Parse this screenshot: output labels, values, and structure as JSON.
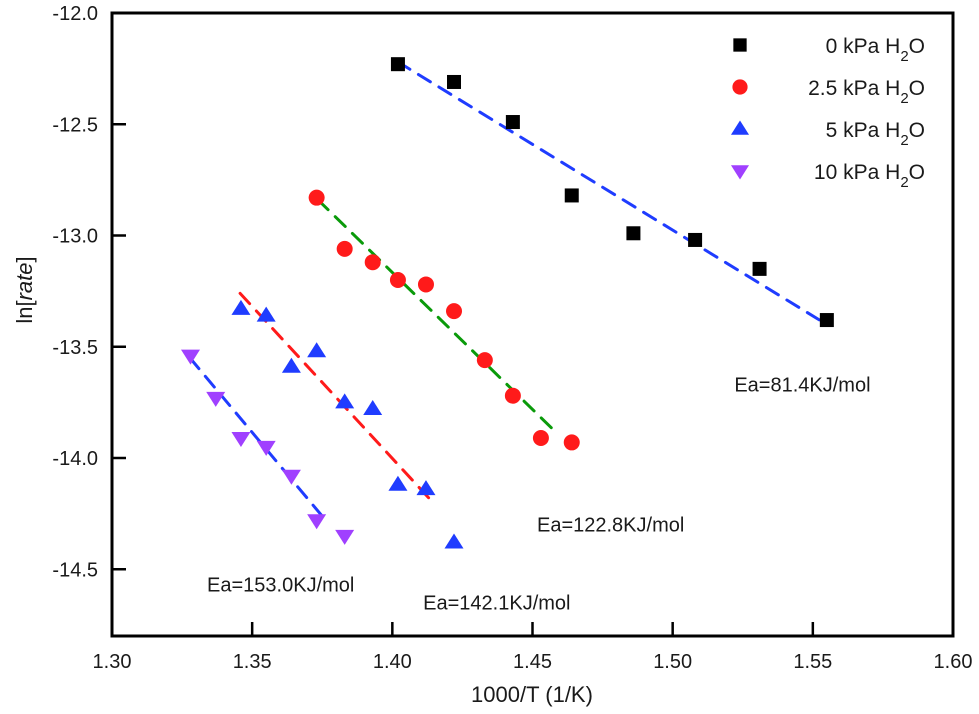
{
  "chart_data": {
    "type": "scatter",
    "title": "",
    "xlabel": "1000/T (1/K)",
    "ylabel": {
      "prefix": "ln[",
      "italic": "rate",
      "suffix": "]"
    },
    "xlim": [
      1.3,
      1.6
    ],
    "ylim": [
      -14.8,
      -12.0
    ],
    "xticks": [
      1.3,
      1.35,
      1.4,
      1.45,
      1.5,
      1.55,
      1.6
    ],
    "xtick_labels": [
      "1.30",
      "1.35",
      "1.40",
      "1.45",
      "1.50",
      "1.55",
      "1.60"
    ],
    "yticks": [
      -12.0,
      -12.5,
      -13.0,
      -13.5,
      -14.0,
      -14.5
    ],
    "ytick_labels": [
      "-12.0",
      "-12.5",
      "-13.0",
      "-13.5",
      "-14.0",
      "-14.5"
    ],
    "grid": false,
    "legend_position": "top-right",
    "series": [
      {
        "name": "0 kPa H2O",
        "label_main": "0 kPa H",
        "label_sub": "2",
        "label_end": "O",
        "marker": "square",
        "color": "#000000",
        "x": [
          1.402,
          1.422,
          1.443,
          1.464,
          1.486,
          1.508,
          1.531,
          1.555
        ],
        "y": [
          -12.23,
          -12.31,
          -12.49,
          -12.82,
          -12.99,
          -13.02,
          -13.15,
          -13.38
        ],
        "fit": {
          "color": "#1f3cff",
          "x": [
            1.402,
            1.555
          ],
          "y": [
            -12.22,
            -13.4
          ]
        }
      },
      {
        "name": "2.5 kPa H2O",
        "label_main": "2.5 kPa H",
        "label_sub": "2",
        "label_end": "O",
        "marker": "circle",
        "color": "#ff1a1a",
        "x": [
          1.373,
          1.383,
          1.393,
          1.402,
          1.412,
          1.422,
          1.433,
          1.443,
          1.453,
          1.464
        ],
        "y": [
          -12.83,
          -13.06,
          -13.12,
          -13.2,
          -13.22,
          -13.34,
          -13.56,
          -13.72,
          -13.91,
          -13.93
        ],
        "fit": {
          "color": "#0a9a0a",
          "x": [
            1.3735,
            1.458
          ],
          "y": [
            -12.84,
            -13.88
          ]
        }
      },
      {
        "name": "5 kPa H2O",
        "label_main": "5 kPa H",
        "label_sub": "2",
        "label_end": "O",
        "marker": "triangle-up",
        "color": "#1f3cff",
        "x": [
          1.346,
          1.355,
          1.364,
          1.373,
          1.383,
          1.393,
          1.402,
          1.412,
          1.422
        ],
        "y": [
          -13.33,
          -13.36,
          -13.59,
          -13.52,
          -13.75,
          -13.78,
          -14.12,
          -14.14,
          -14.38
        ],
        "fit": {
          "color": "#ff1a1a",
          "x": [
            1.3457,
            1.4145
          ],
          "y": [
            -13.26,
            -14.2
          ]
        }
      },
      {
        "name": "10 kPa H2O",
        "label_main": "10 kPa H",
        "label_sub": "2",
        "label_end": "O",
        "marker": "triangle-down",
        "color": "#a040ff",
        "x": [
          1.328,
          1.337,
          1.346,
          1.355,
          1.364,
          1.373,
          1.383
        ],
        "y": [
          -13.54,
          -13.73,
          -13.91,
          -13.95,
          -14.08,
          -14.28,
          -14.35
        ],
        "fit": {
          "color": "#1f3cff",
          "x": [
            1.3278,
            1.3749
          ],
          "y": [
            -13.55,
            -14.26
          ]
        }
      }
    ],
    "annotations": [
      {
        "text": "Ea=81.4KJ/mol",
        "x": 1.522,
        "y": -13.7
      },
      {
        "text": "Ea=122.8KJ/mol",
        "x": 1.4516,
        "y": -14.33
      },
      {
        "text": "Ea=153.0KJ/mol",
        "x": 1.3339,
        "y": -14.6
      },
      {
        "text": "Ea=142.1KJ/mol",
        "x": 1.411,
        "y": -14.68
      }
    ]
  }
}
